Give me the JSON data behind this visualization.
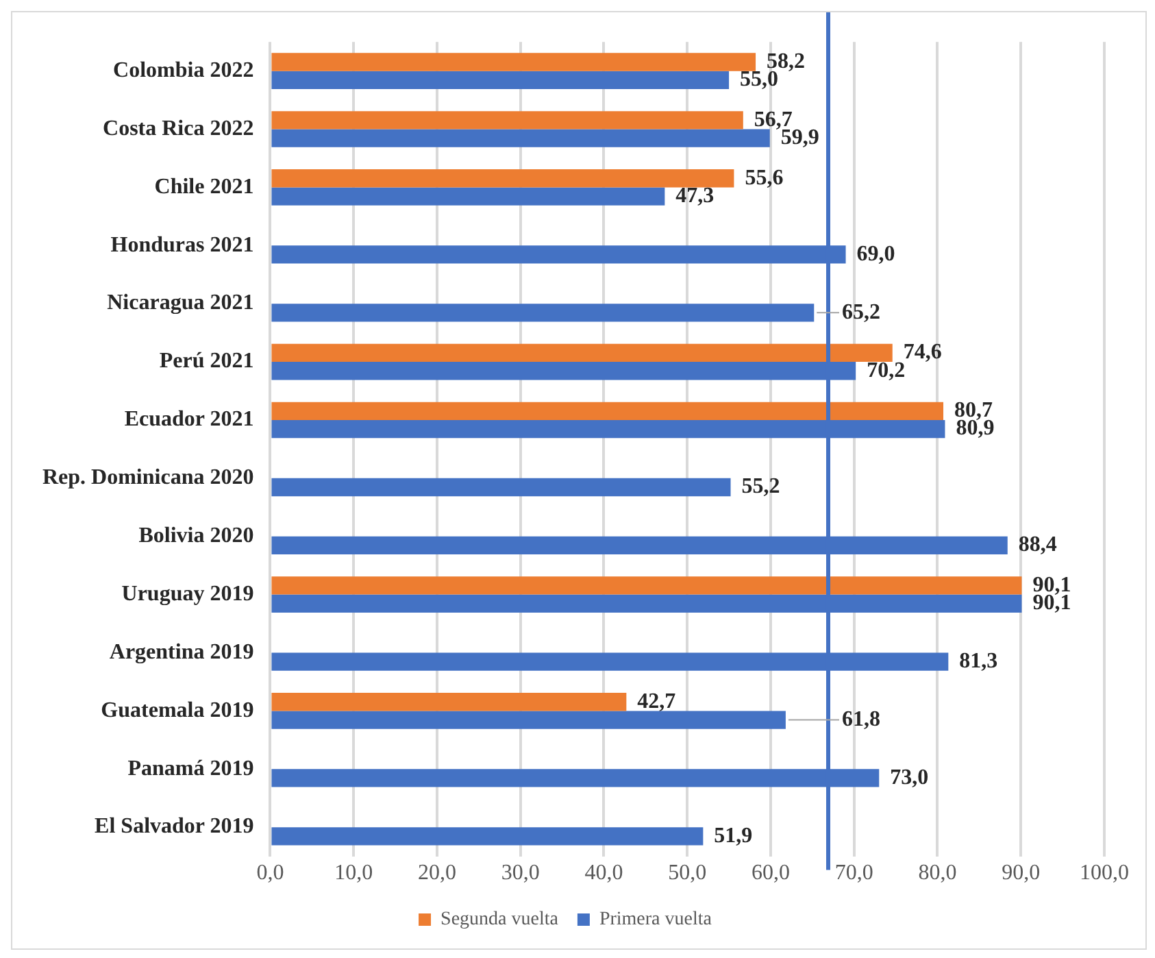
{
  "chart_data": {
    "type": "bar",
    "orientation": "horizontal",
    "categories": [
      "Colombia 2022",
      "Costa Rica 2022",
      "Chile 2021",
      "Honduras 2021",
      "Nicaragua 2021",
      "Perú 2021",
      "Ecuador 2021",
      "Rep. Dominicana 2020",
      "Bolivia 2020",
      "Uruguay 2019",
      "Argentina 2019",
      "Guatemala 2019",
      "Panamá 2019",
      "El Salvador 2019"
    ],
    "series": [
      {
        "name": "Segunda vuelta",
        "color": "#ed7d31",
        "values": [
          58.2,
          56.7,
          55.6,
          null,
          null,
          74.6,
          80.7,
          null,
          null,
          90.1,
          null,
          42.7,
          null,
          null
        ],
        "value_labels": [
          "58,2",
          "56,7",
          "55,6",
          null,
          null,
          "74,6",
          "80,7",
          null,
          null,
          "90,1",
          null,
          "42,7",
          null,
          null
        ]
      },
      {
        "name": "Primera vuelta",
        "color": "#4472c4",
        "values": [
          55.0,
          59.9,
          47.3,
          69.0,
          65.2,
          70.2,
          80.9,
          55.2,
          88.4,
          90.1,
          81.3,
          61.8,
          73.0,
          51.9
        ],
        "value_labels": [
          "55,0",
          "59,9",
          "47,3",
          "69,0",
          "65,2",
          "70,2",
          "80,9",
          "55,2",
          "88,4",
          "90,1",
          "81,3",
          "61,8",
          "73,0",
          "51,9"
        ]
      }
    ],
    "xlim": [
      0,
      100
    ],
    "xticks": [
      {
        "value": 0,
        "label": "0,0"
      },
      {
        "value": 10,
        "label": "10,0"
      },
      {
        "value": 20,
        "label": "20,0"
      },
      {
        "value": 30,
        "label": "30,0"
      },
      {
        "value": 40,
        "label": "40,0"
      },
      {
        "value": 50,
        "label": "50,0"
      },
      {
        "value": 60,
        "label": "60,0"
      },
      {
        "value": 70,
        "label": "70,0"
      },
      {
        "value": 80,
        "label": "80,0"
      },
      {
        "value": 90,
        "label": "90,0"
      },
      {
        "value": 100,
        "label": "100,0"
      }
    ],
    "ref_lines": [
      {
        "axis": "x",
        "value": 66.9,
        "color": "#4472c4"
      }
    ],
    "grid": "x",
    "legend": "bottom"
  }
}
